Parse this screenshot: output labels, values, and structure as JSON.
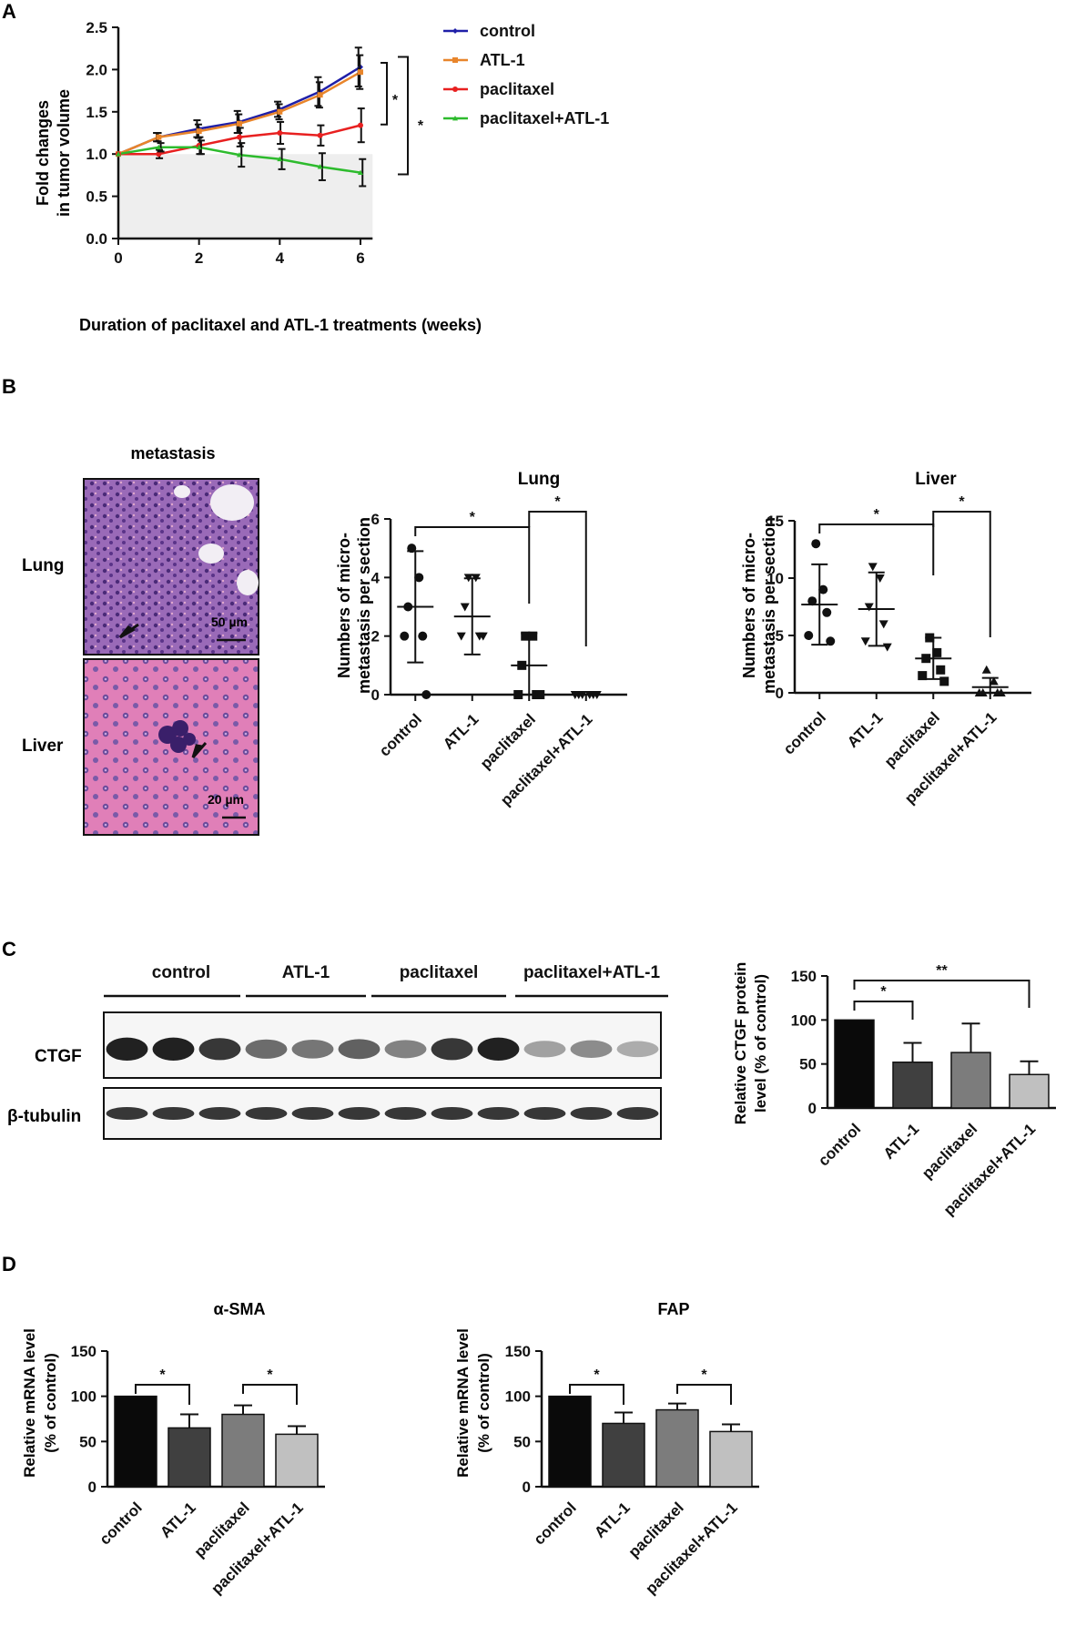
{
  "panels": {
    "A": "A",
    "B": "B",
    "C": "C",
    "D": "D"
  },
  "chart_data": [
    {
      "id": "tumor",
      "type": "line",
      "xlabel": "Duration of paclitaxel and ATL-1 treatments (weeks)",
      "ylabel": [
        "Fold changes",
        "in tumor volume"
      ],
      "xlim": [
        0,
        6.3
      ],
      "ylim": [
        0,
        2.5
      ],
      "xticks": [
        0,
        2,
        4,
        6
      ],
      "yticks": [
        "0.0",
        "0.5",
        "1.0",
        "1.5",
        "2.0",
        "2.5"
      ],
      "x": [
        0,
        1,
        2,
        3,
        4,
        5,
        6
      ],
      "shaded_region": {
        "y": [
          0,
          1.0
        ],
        "x": [
          0,
          6.3
        ]
      },
      "legend_position": "top-right",
      "series": [
        {
          "name": "control",
          "color": "#1f1fa8",
          "marker": "diamond",
          "values": [
            1.0,
            1.2,
            1.3,
            1.38,
            1.53,
            1.74,
            2.03
          ],
          "errors": [
            0,
            0.05,
            0.1,
            0.13,
            0.09,
            0.17,
            0.23
          ]
        },
        {
          "name": "ATL-1",
          "color": "#e8852b",
          "marker": "square",
          "values": [
            1.0,
            1.2,
            1.27,
            1.36,
            1.5,
            1.7,
            1.97
          ],
          "errors": [
            0,
            0.05,
            0.08,
            0.11,
            0.09,
            0.15,
            0.2
          ]
        },
        {
          "name": "paclitaxel",
          "color": "#e82020",
          "marker": "circle",
          "values": [
            1.0,
            1.0,
            1.1,
            1.2,
            1.25,
            1.22,
            1.34
          ],
          "errors": [
            0,
            0.05,
            0.1,
            0.11,
            0.13,
            0.12,
            0.2
          ]
        },
        {
          "name": "paclitaxel+ATL-1",
          "color": "#2dbb2d",
          "marker": "triangle",
          "values": [
            1.0,
            1.08,
            1.08,
            0.99,
            0.94,
            0.85,
            0.78
          ],
          "errors": [
            0,
            0.05,
            0.08,
            0.14,
            0.12,
            0.16,
            0.16
          ]
        }
      ],
      "significance": [
        {
          "between": [
            "control",
            "paclitaxel"
          ],
          "label": "*"
        },
        {
          "between": [
            "control",
            "paclitaxel+ATL-1"
          ],
          "label": "*"
        }
      ]
    },
    {
      "id": "lung",
      "type": "scatter",
      "title": "Lung",
      "ylabel": [
        "Numbers of micro-",
        "metastasis per section"
      ],
      "ylim": [
        0,
        6
      ],
      "yticks": [
        0,
        2,
        4,
        6
      ],
      "categories": [
        "control",
        "ATL-1",
        "paclitaxel",
        "paclitaxel+ATL-1"
      ],
      "markers": [
        "circle",
        "triangle-down",
        "square",
        "triangle-down"
      ],
      "points": [
        [
          5,
          4,
          3,
          2,
          2,
          0
        ],
        [
          4,
          4,
          3,
          2,
          2,
          2
        ],
        [
          2,
          2,
          1,
          0,
          0,
          0
        ],
        [
          0,
          0,
          0,
          0,
          0,
          0
        ]
      ],
      "mean": [
        3.0,
        2.67,
        1.0,
        0.0
      ],
      "sd": [
        1.9,
        1.3,
        1.1,
        0.0
      ],
      "significance": [
        {
          "between": [
            "control",
            "paclitaxel"
          ],
          "label": "*"
        },
        {
          "between": [
            "paclitaxel",
            "paclitaxel+ATL-1"
          ],
          "label": "*"
        }
      ]
    },
    {
      "id": "liver",
      "type": "scatter",
      "title": "Liver",
      "ylabel": [
        "Numbers of micro-",
        "metastasis per section"
      ],
      "ylim": [
        0,
        15
      ],
      "yticks": [
        0,
        5,
        10,
        15
      ],
      "categories": [
        "control",
        "ATL-1",
        "paclitaxel",
        "paclitaxel+ATL-1"
      ],
      "markers": [
        "circle",
        "triangle-down",
        "square",
        "triangle-up"
      ],
      "points": [
        [
          13,
          9,
          8,
          7,
          5,
          4.5
        ],
        [
          11,
          10,
          7.5,
          6,
          4.5,
          4
        ],
        [
          4.8,
          3.5,
          3,
          2,
          1.5,
          1
        ],
        [
          2,
          1,
          0,
          0,
          0,
          0
        ]
      ],
      "mean": [
        7.7,
        7.3,
        3.0,
        0.5
      ],
      "sd": [
        3.5,
        3.2,
        1.8,
        0.8
      ],
      "significance": [
        {
          "between": [
            "control",
            "paclitaxel"
          ],
          "label": "*"
        },
        {
          "between": [
            "paclitaxel",
            "paclitaxel+ATL-1"
          ],
          "label": "*"
        }
      ]
    },
    {
      "id": "ctgf",
      "type": "bar",
      "ylabel": [
        "Relative CTGF protein",
        "level (% of control)"
      ],
      "ylim": [
        0,
        150
      ],
      "yticks": [
        0,
        50,
        100,
        150
      ],
      "categories": [
        "control",
        "ATL-1",
        "paclitaxel",
        "paclitaxel+ATL-1"
      ],
      "values": [
        100,
        52,
        63,
        38
      ],
      "errors": [
        0,
        22,
        33,
        15
      ],
      "colors": [
        "#0a0a0a",
        "#404040",
        "#7c7c7c",
        "#c0c0c0"
      ],
      "significance": [
        {
          "between": [
            "control",
            "ATL-1"
          ],
          "label": "*"
        },
        {
          "between": [
            "control",
            "paclitaxel+ATL-1"
          ],
          "label": "**"
        }
      ]
    },
    {
      "id": "asma",
      "type": "bar",
      "title": "α-SMA",
      "ylabel": [
        "Relative mRNA level",
        "(% of control)"
      ],
      "ylim": [
        0,
        150
      ],
      "yticks": [
        0,
        50,
        100,
        150
      ],
      "categories": [
        "control",
        "ATL-1",
        "paclitaxel",
        "paclitaxel+ATL-1"
      ],
      "values": [
        100,
        65,
        80,
        58
      ],
      "errors": [
        0,
        15,
        10,
        9
      ],
      "colors": [
        "#0a0a0a",
        "#404040",
        "#7c7c7c",
        "#c0c0c0"
      ],
      "significance": [
        {
          "between": [
            "control",
            "ATL-1"
          ],
          "label": "*"
        },
        {
          "between": [
            "paclitaxel",
            "paclitaxel+ATL-1"
          ],
          "label": "*"
        }
      ]
    },
    {
      "id": "fap",
      "type": "bar",
      "title": "FAP",
      "ylabel": [
        "Relative mRNA level",
        "(% of control)"
      ],
      "ylim": [
        0,
        150
      ],
      "yticks": [
        0,
        50,
        100,
        150
      ],
      "categories": [
        "control",
        "ATL-1",
        "paclitaxel",
        "paclitaxel+ATL-1"
      ],
      "values": [
        100,
        70,
        85,
        61
      ],
      "errors": [
        0,
        12,
        7,
        8
      ],
      "colors": [
        "#0a0a0a",
        "#404040",
        "#7c7c7c",
        "#c0c0c0"
      ],
      "significance": [
        {
          "between": [
            "control",
            "ATL-1"
          ],
          "label": "*"
        },
        {
          "between": [
            "paclitaxel",
            "paclitaxel+ATL-1"
          ],
          "label": "*"
        }
      ]
    }
  ],
  "histology": {
    "title": "metastasis",
    "rows": [
      {
        "label": "Lung",
        "scale": "50 µm"
      },
      {
        "label": "Liver",
        "scale": "20 µm"
      }
    ]
  },
  "western": {
    "groups": [
      "control",
      "ATL-1",
      "paclitaxel",
      "paclitaxel+ATL-1"
    ],
    "rows": [
      {
        "label": "CTGF",
        "intensity": [
          0.95,
          0.95,
          0.85,
          0.6,
          0.55,
          0.65,
          0.5,
          0.85,
          0.95,
          0.35,
          0.45,
          0.3
        ]
      },
      {
        "label": "β-tubulin",
        "intensity": [
          0.85,
          0.85,
          0.85,
          0.85,
          0.85,
          0.85,
          0.85,
          0.85,
          0.85,
          0.85,
          0.85,
          0.85
        ]
      }
    ]
  }
}
